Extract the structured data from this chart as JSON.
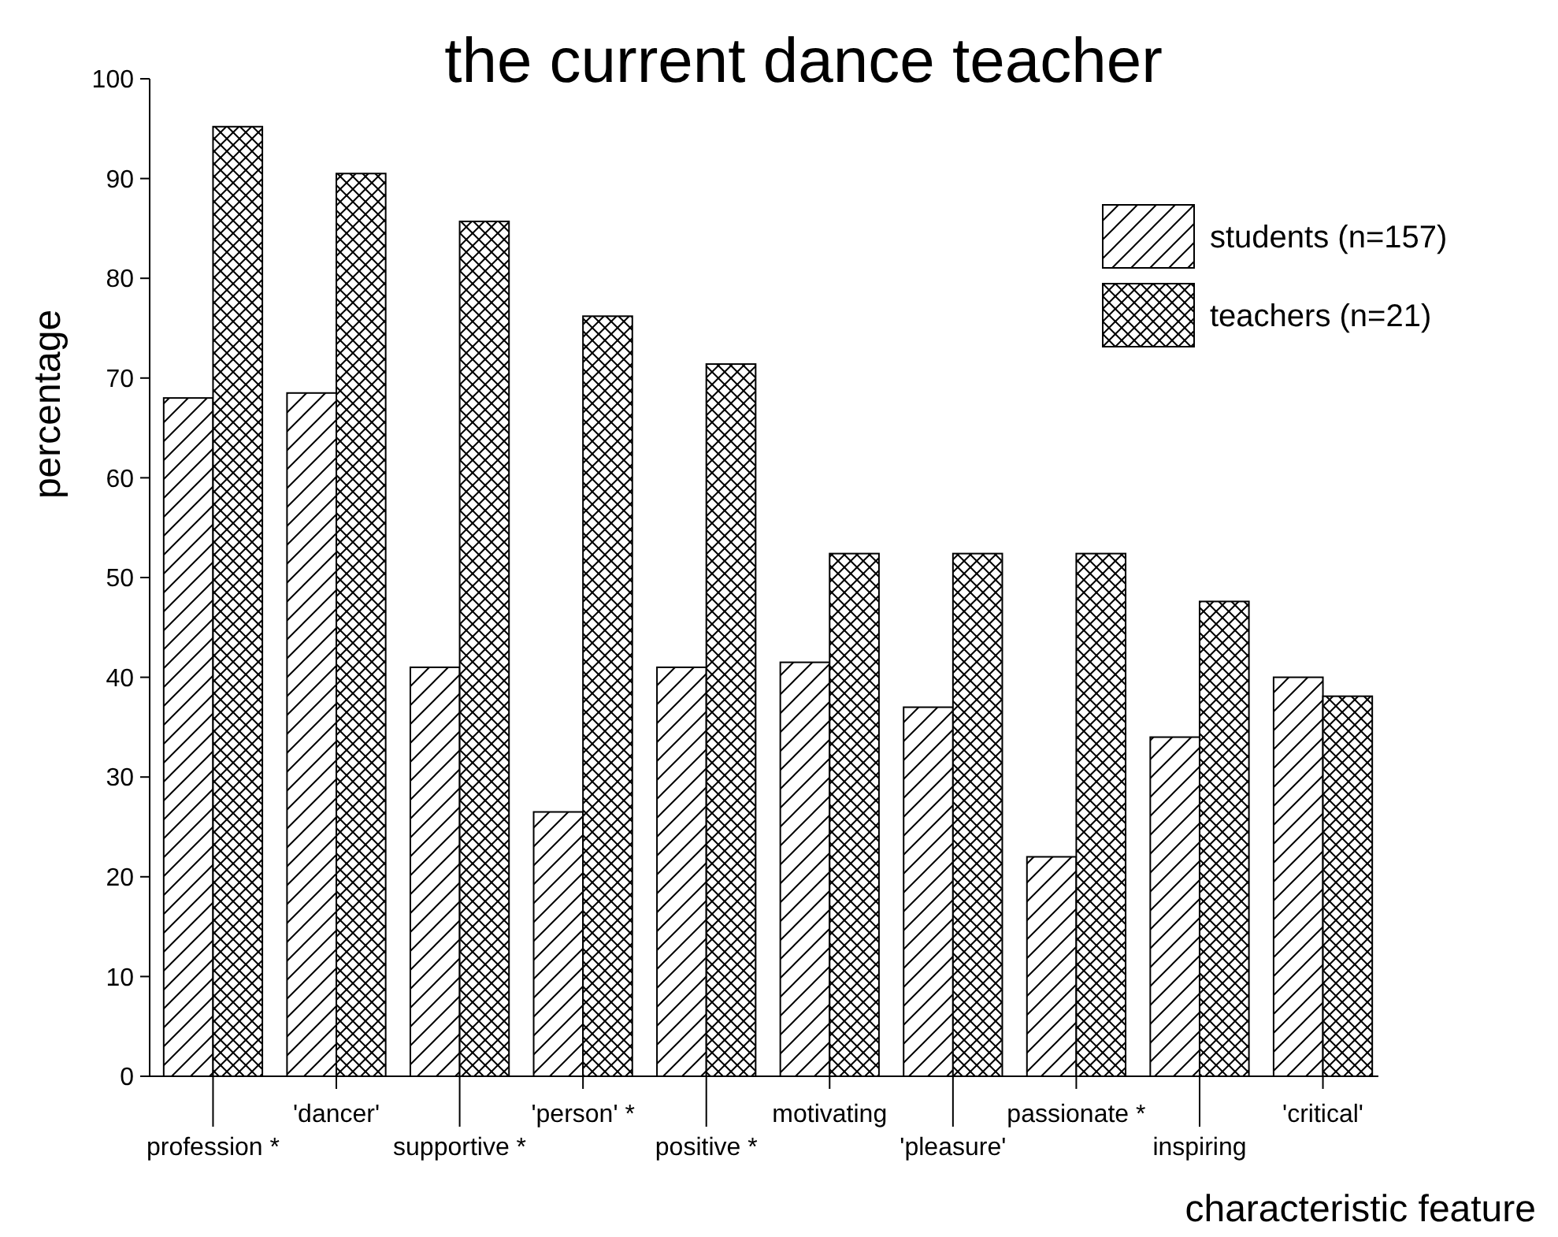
{
  "chart_data": {
    "type": "bar",
    "title": "the current dance teacher",
    "xlabel": "characteristic feature",
    "ylabel": "percentage",
    "categories": [
      "profession *",
      "'dancer'",
      "supportive *",
      "'person' *",
      "positive *",
      "motivating",
      "'pleasure'",
      "passionate *",
      "inspiring",
      "'critical'"
    ],
    "series": [
      {
        "name": "students (n=157)",
        "color": "#000000",
        "values": [
          68,
          68.5,
          41,
          26.5,
          41,
          41.5,
          37,
          22,
          34,
          40
        ]
      },
      {
        "name": "teachers (n=21)",
        "color": "#000000",
        "values": [
          95.2,
          90.5,
          85.7,
          76.2,
          71.4,
          52.4,
          52.4,
          52.4,
          47.6,
          38.1
        ]
      }
    ],
    "ylim": [
      0,
      100
    ],
    "yticks": [
      0,
      10,
      20,
      30,
      40,
      50,
      60,
      70,
      80,
      90,
      100
    ],
    "grid": false,
    "legend": "top right"
  }
}
